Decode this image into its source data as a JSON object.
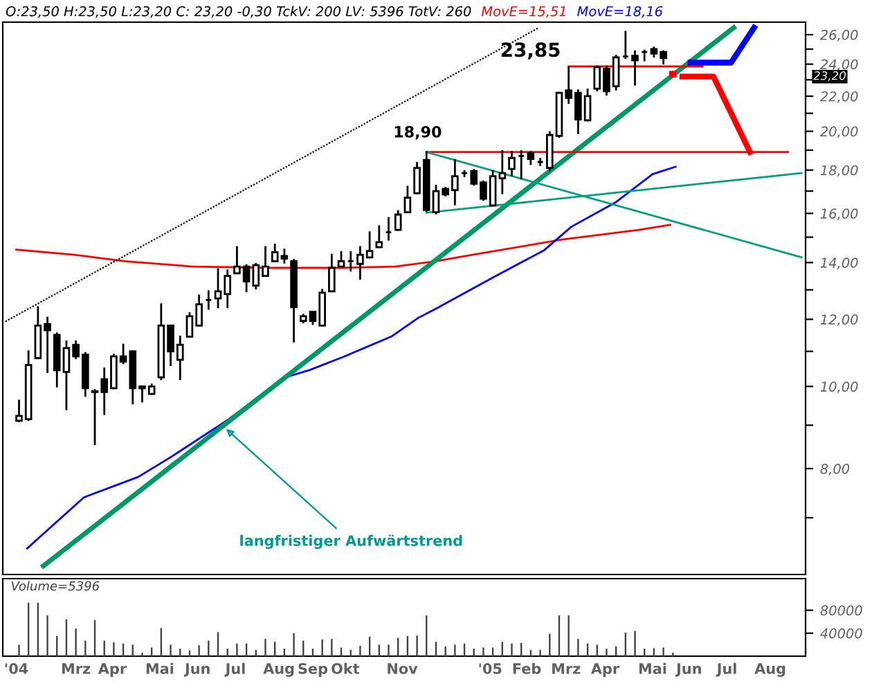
{
  "chart_data": [
    {
      "type": "candlestick",
      "title": "O:23,50 H:23,50 L:23,20 C: 23,20 -0,30 TckV: 200 LV: 5396 TotV: 260",
      "x": [
        "2004-01-30",
        "2004-02-06",
        "2004-02-13",
        "2004-02-20",
        "2004-02-27",
        "2004-03-05",
        "2004-03-12",
        "2004-03-19",
        "2004-03-26",
        "2004-04-02",
        "2004-04-09",
        "2004-04-16",
        "2004-04-23",
        "2004-04-30",
        "2004-05-07",
        "2004-05-14",
        "2004-05-21",
        "2004-05-28",
        "2004-06-04",
        "2004-06-11",
        "2004-06-18",
        "2004-06-25",
        "2004-07-02",
        "2004-07-09",
        "2004-07-16",
        "2004-07-23",
        "2004-07-30",
        "2004-08-06",
        "2004-08-13",
        "2004-08-20",
        "2004-08-27",
        "2004-09-03",
        "2004-09-10",
        "2004-09-17",
        "2004-09-24",
        "2004-10-01",
        "2004-10-08",
        "2004-10-15",
        "2004-10-22",
        "2004-10-29",
        "2004-11-05",
        "2004-11-12",
        "2004-11-19",
        "2004-11-26",
        "2004-12-03",
        "2004-12-10",
        "2004-12-17",
        "2004-12-24",
        "2004-12-31",
        "2005-01-07",
        "2005-01-14",
        "2005-01-21",
        "2005-01-28",
        "2005-02-04",
        "2005-02-11",
        "2005-02-18",
        "2005-02-25",
        "2005-03-04",
        "2005-03-11",
        "2005-03-18",
        "2005-03-25",
        "2005-04-01",
        "2005-04-08",
        "2005-04-15",
        "2005-04-22",
        "2005-04-29",
        "2005-05-06",
        "2005-05-13",
        "2005-05-20",
        "2005-05-27"
      ],
      "ohlc": [
        [
          9.11,
          9.62,
          9.1,
          9.23
        ],
        [
          9.15,
          11.0,
          9.13,
          10.6
        ],
        [
          10.8,
          12.4,
          10.8,
          11.8
        ],
        [
          11.85,
          12.05,
          10.4,
          11.65
        ],
        [
          11.5,
          11.55,
          10.0,
          10.45
        ],
        [
          10.4,
          11.3,
          9.4,
          11.1
        ],
        [
          11.2,
          11.3,
          10.8,
          10.85
        ],
        [
          10.9,
          10.95,
          9.75,
          9.95
        ],
        [
          9.87,
          9.9,
          8.55,
          9.85
        ],
        [
          10.2,
          10.5,
          9.28,
          9.85
        ],
        [
          9.95,
          10.9,
          9.95,
          10.85
        ],
        [
          10.85,
          11.2,
          10.65,
          10.7
        ],
        [
          11.0,
          11.0,
          9.55,
          9.95
        ],
        [
          10.0,
          10.0,
          9.6,
          9.95
        ],
        [
          9.8,
          10.05,
          9.8,
          10.0
        ],
        [
          10.25,
          12.5,
          10.2,
          11.8
        ],
        [
          11.8,
          11.8,
          10.6,
          11.0
        ],
        [
          10.75,
          11.45,
          10.2,
          11.2
        ],
        [
          11.45,
          12.2,
          11.45,
          12.1
        ],
        [
          11.8,
          12.8,
          11.8,
          12.5
        ],
        [
          12.65,
          12.95,
          12.35,
          12.65
        ],
        [
          12.7,
          13.75,
          12.4,
          12.95
        ],
        [
          12.85,
          13.7,
          12.4,
          13.5
        ],
        [
          13.6,
          14.6,
          13.6,
          13.85
        ],
        [
          13.85,
          13.9,
          12.95,
          13.3
        ],
        [
          13.15,
          13.95,
          13.05,
          13.9
        ],
        [
          13.5,
          14.6,
          13.5,
          13.85
        ],
        [
          14.05,
          14.7,
          14.05,
          14.4
        ],
        [
          14.25,
          14.5,
          14.0,
          14.15
        ],
        [
          14.05,
          14.1,
          11.3,
          12.4
        ],
        [
          11.95,
          12.15,
          11.9,
          12.1
        ],
        [
          12.25,
          12.25,
          11.85,
          11.95
        ],
        [
          11.8,
          13.0,
          11.8,
          12.9
        ],
        [
          12.95,
          14.3,
          12.95,
          13.8
        ],
        [
          13.85,
          14.4,
          13.85,
          14.05
        ],
        [
          14.05,
          14.4,
          13.7,
          14.05
        ],
        [
          13.95,
          14.6,
          13.4,
          14.3
        ],
        [
          14.2,
          15.2,
          14.2,
          14.45
        ],
        [
          14.6,
          15.45,
          14.6,
          14.8
        ],
        [
          15.2,
          15.8,
          14.9,
          15.2
        ],
        [
          15.3,
          16.1,
          15.3,
          15.95
        ],
        [
          16.05,
          17.2,
          16.05,
          16.7
        ],
        [
          16.9,
          18.35,
          16.9,
          18.1
        ],
        [
          18.5,
          18.9,
          16.1,
          16.15
        ],
        [
          16.05,
          17.25,
          16.0,
          17.0
        ],
        [
          17.1,
          17.15,
          16.8,
          16.85
        ],
        [
          17.05,
          18.5,
          16.4,
          17.7
        ],
        [
          17.85,
          17.95,
          17.7,
          17.85
        ],
        [
          17.95,
          18.0,
          17.3,
          17.35
        ],
        [
          17.4,
          17.45,
          16.6,
          16.65
        ],
        [
          16.35,
          17.95,
          16.35,
          17.7
        ],
        [
          17.6,
          18.95,
          16.9,
          17.85
        ],
        [
          18.05,
          18.9,
          17.75,
          18.6
        ],
        [
          18.7,
          18.95,
          17.6,
          18.7
        ],
        [
          18.85,
          18.9,
          18.3,
          18.55
        ],
        [
          18.4,
          18.55,
          18.25,
          18.4
        ],
        [
          18.1,
          19.95,
          18.0,
          19.8
        ],
        [
          19.75,
          22.2,
          19.7,
          22.2
        ],
        [
          22.35,
          23.8,
          21.6,
          21.9
        ],
        [
          22.2,
          22.35,
          19.9,
          20.65
        ],
        [
          20.6,
          22.4,
          20.6,
          22.0
        ],
        [
          22.45,
          23.85,
          22.35,
          23.8
        ],
        [
          23.7,
          23.85,
          22.1,
          22.3
        ],
        [
          22.6,
          24.55,
          22.4,
          24.45
        ],
        [
          24.5,
          26.2,
          24.4,
          24.5
        ],
        [
          24.55,
          24.85,
          22.7,
          24.25
        ],
        [
          24.8,
          24.9,
          24.25,
          24.8
        ],
        [
          25.0,
          25.1,
          24.5,
          24.7
        ],
        [
          24.8,
          24.85,
          24.05,
          24.4
        ],
        [
          23.5,
          23.5,
          23.2,
          23.2
        ]
      ],
      "colors": [
        "#ffffff",
        "#ffffff",
        "#ffffff",
        "#000000",
        "#000000",
        "#ffffff",
        "#000000",
        "#000000",
        "#000000",
        "#000000",
        "#ffffff",
        "#000000",
        "#000000",
        "#000000",
        "#ffffff",
        "#ffffff",
        "#000000",
        "#ffffff",
        "#ffffff",
        "#ffffff",
        "#000000",
        "#ffffff",
        "#ffffff",
        "#ffffff",
        "#000000",
        "#ffffff",
        "#ffffff",
        "#ffffff",
        "#000000",
        "#000000",
        "#ffffff",
        "#000000",
        "#ffffff",
        "#ffffff",
        "#ffffff",
        "#000000",
        "#ffffff",
        "#ffffff",
        "#ffffff",
        "#000000",
        "#ffffff",
        "#ffffff",
        "#ffffff",
        "#000000",
        "#ffffff",
        "#000000",
        "#ffffff",
        "#000000",
        "#000000",
        "#000000",
        "#ffffff",
        "#ffffff",
        "#ffffff",
        "#000000",
        "#000000",
        "#000000",
        "#ffffff",
        "#ffffff",
        "#000000",
        "#000000",
        "#ffffff",
        "#ffffff",
        "#000000",
        "#ffffff",
        "#000000",
        "#000000",
        "#000000",
        "#000000",
        "#000000",
        "#ff0000"
      ],
      "series": [
        {
          "name": "MovE=15,51",
          "type": "line",
          "color": "#ff0000",
          "x": [
            "2004-01-28",
            "2004-03-11",
            "2004-04-17",
            "2004-06-06",
            "2004-08-05",
            "2004-09-24",
            "2004-11-03",
            "2004-12-03",
            "2004-12-30",
            "2005-03-06",
            "2005-05-02",
            "2005-05-25"
          ],
          "values": [
            14.5,
            14.3,
            14.05,
            13.85,
            13.8,
            13.8,
            13.85,
            14.05,
            14.3,
            14.9,
            15.3,
            15.51
          ]
        },
        {
          "name": "MovE=18,16",
          "type": "line",
          "color": "#0000ff",
          "x": [
            "2004-02-05",
            "2004-03-18",
            "2004-04-27",
            "2004-05-22",
            "2004-07-03",
            "2004-07-26",
            "2004-08-12",
            "2004-09-01",
            "2004-09-27",
            "2004-10-31",
            "2004-11-20",
            "2004-12-03",
            "2005-01-14",
            "2005-02-21",
            "2005-03-13",
            "2005-04-15",
            "2005-05-12",
            "2005-05-29"
          ],
          "values": [
            6.44,
            7.4,
            7.82,
            8.27,
            9.15,
            9.75,
            10.23,
            10.46,
            10.86,
            11.45,
            12.05,
            12.35,
            13.44,
            14.48,
            15.43,
            16.5,
            17.8,
            18.16
          ]
        },
        {
          "type": "line",
          "color": "#009966",
          "x": [
            "2004-02-17",
            "2005-07-11"
          ],
          "values": [
            6.14,
            26.5
          ]
        },
        {
          "type": "line",
          "color": "#000000",
          "line_style": "dotted",
          "x": [
            "2004-01-20",
            "2005-02-17"
          ],
          "values": [
            11.93,
            26.5
          ]
        },
        {
          "type": "line",
          "color": "#ff0000",
          "x": [
            "2004-11-26",
            "2005-08-20"
          ],
          "values": [
            18.9,
            18.9
          ]
        },
        {
          "type": "line",
          "color": "#ff0000",
          "x": [
            "2005-03-11",
            "2005-06-18"
          ],
          "values": [
            23.85,
            23.85
          ]
        },
        {
          "type": "line",
          "color": "#00a080",
          "x": [
            "2004-11-26",
            "2005-08-30"
          ],
          "values": [
            18.9,
            14.2
          ]
        },
        {
          "type": "line",
          "color": "#00a080",
          "x": [
            "2004-11-26",
            "2005-08-30"
          ],
          "values": [
            16.03,
            17.85
          ]
        },
        {
          "type": "line",
          "color": "#0000ff",
          "x": [
            "2005-06-09",
            "2005-07-09",
            "2005-07-26"
          ],
          "values": [
            24.1,
            24.1,
            26.5
          ]
        },
        {
          "type": "line",
          "color": "#ff0000",
          "x": [
            "2005-06-03",
            "2005-06-26",
            "2005-07-23"
          ],
          "values": [
            23.2,
            23.2,
            18.9
          ]
        }
      ],
      "annotations": [
        {
          "text": "18,90",
          "x": "2004-11-26",
          "y": 18.9
        },
        {
          "text": "23,85",
          "x": "2005-03-11",
          "y": 23.85
        },
        {
          "text": "langfristiger Aufwärtstrend",
          "x": "2004-07-01",
          "y": 8.91
        },
        "23,20"
      ],
      "log": true,
      "xlim": [
        "2004-01-18",
        "2005-09-02"
      ],
      "ylim": [
        6.0,
        26.9
      ],
      "yticks": [
        {
          "value": 7,
          "label": null
        },
        {
          "value": 8,
          "label": "8,00"
        },
        {
          "value": 9,
          "label": null
        },
        {
          "value": 10,
          "label": "10,00"
        },
        {
          "value": 11,
          "label": null
        },
        {
          "value": 12,
          "label": "12,00"
        },
        {
          "value": 13,
          "label": null
        },
        {
          "value": 14,
          "label": "14,00"
        },
        {
          "value": 15,
          "label": null
        },
        {
          "value": 16,
          "label": "16,00"
        },
        {
          "value": 17,
          "label": null
        },
        {
          "value": 18,
          "label": "18,00"
        },
        {
          "value": 19,
          "label": null
        },
        {
          "value": 20,
          "label": "20,00"
        },
        {
          "value": 21,
          "label": null
        },
        {
          "value": 22,
          "label": "22,00"
        },
        {
          "value": 23,
          "label": null
        },
        {
          "value": 24,
          "label": "24,00"
        },
        {
          "value": 25,
          "label": null
        },
        {
          "value": 26,
          "label": "26,00"
        }
      ],
      "tick_labels": "y",
      "grid": false,
      "legend": false
    },
    {
      "type": "bar",
      "title": "Volume=5396",
      "color": "#404040",
      "x": [
        "2004-01-30",
        "2004-02-06",
        "2004-02-13",
        "2004-02-20",
        "2004-02-27",
        "2004-03-05",
        "2004-03-12",
        "2004-03-19",
        "2004-03-26",
        "2004-04-02",
        "2004-04-09",
        "2004-04-16",
        "2004-04-23",
        "2004-04-30",
        "2004-05-07",
        "2004-05-14",
        "2004-05-21",
        "2004-05-28",
        "2004-06-04",
        "2004-06-11",
        "2004-06-18",
        "2004-06-25",
        "2004-07-02",
        "2004-07-09",
        "2004-07-16",
        "2004-07-23",
        "2004-07-30",
        "2004-08-06",
        "2004-08-13",
        "2004-08-20",
        "2004-08-27",
        "2004-09-03",
        "2004-09-10",
        "2004-09-17",
        "2004-09-24",
        "2004-10-01",
        "2004-10-08",
        "2004-10-15",
        "2004-10-22",
        "2004-10-29",
        "2004-11-05",
        "2004-11-12",
        "2004-11-19",
        "2004-11-26",
        "2004-12-03",
        "2004-12-10",
        "2004-12-17",
        "2004-12-24",
        "2004-12-31",
        "2005-01-07",
        "2005-01-14",
        "2005-01-21",
        "2005-01-28",
        "2005-02-04",
        "2005-02-11",
        "2005-02-18",
        "2005-02-25",
        "2005-03-04",
        "2005-03-11",
        "2005-03-18",
        "2005-03-25",
        "2005-04-01",
        "2005-04-08",
        "2005-04-15",
        "2005-04-22",
        "2005-04-29",
        "2005-05-06",
        "2005-05-13",
        "2005-05-20",
        "2005-05-27"
      ],
      "values": [
        20000,
        93000,
        93000,
        71000,
        35000,
        64000,
        48000,
        27000,
        63000,
        27000,
        24000,
        22000,
        20000,
        6000,
        15000,
        49000,
        20000,
        13000,
        10000,
        19000,
        27000,
        42000,
        13000,
        22000,
        22000,
        11000,
        30000,
        25000,
        13000,
        40000,
        27000,
        13000,
        29000,
        30000,
        15000,
        11000,
        18000,
        34000,
        20000,
        20000,
        32000,
        35000,
        36000,
        71000,
        25000,
        17000,
        20000,
        22000,
        13000,
        15000,
        15000,
        25000,
        22000,
        23000,
        11000,
        11000,
        39000,
        71000,
        71000,
        30000,
        22000,
        20000,
        13000,
        17000,
        41000,
        44000,
        13000,
        14000,
        15000,
        6000
      ],
      "xlim": [
        "2004-01-18",
        "2005-09-02"
      ],
      "xticks": [
        {
          "value": "2004-01-28",
          "label": "'04"
        },
        {
          "value": "2004-03-12",
          "label": "Mrz"
        },
        {
          "value": "2004-04-08",
          "label": "Apr"
        },
        {
          "value": "2004-05-13",
          "label": "Mai"
        },
        {
          "value": "2004-06-10",
          "label": "Jun"
        },
        {
          "value": "2004-07-08",
          "label": "Jul"
        },
        {
          "value": "2004-08-09",
          "label": "Aug"
        },
        {
          "value": "2004-09-03",
          "label": "Sep"
        },
        {
          "value": "2004-09-27",
          "label": "Okt"
        },
        {
          "value": "2004-11-08",
          "label": "Nov"
        },
        {
          "value": "2005-01-12",
          "label": "'05"
        },
        {
          "value": "2005-02-08",
          "label": "Feb"
        },
        {
          "value": "2005-03-09",
          "label": "Mrz"
        },
        {
          "value": "2005-04-07",
          "label": "Apr"
        },
        {
          "value": "2005-05-12",
          "label": "Mai"
        },
        {
          "value": "2005-06-08",
          "label": "Jun"
        },
        {
          "value": "2005-07-06",
          "label": "Jul"
        },
        {
          "value": "2005-08-07",
          "label": "Aug"
        }
      ],
      "ylim": [
        0,
        135000
      ],
      "yticks": [
        40000,
        80000
      ],
      "grid": false,
      "legend": false
    }
  ]
}
